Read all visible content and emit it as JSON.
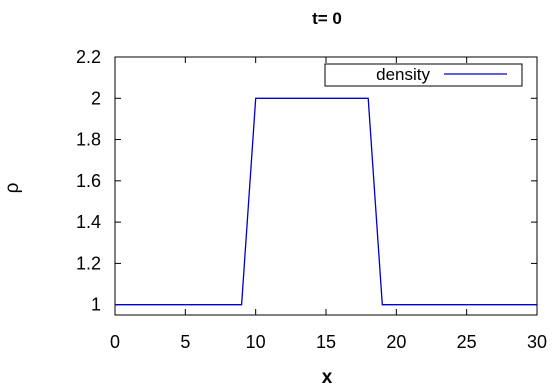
{
  "chart_data": {
    "type": "line",
    "title": "t= 0",
    "xlabel": "x",
    "ylabel": "ρ",
    "xlim": [
      0,
      30
    ],
    "ylim": [
      0.95,
      2.2
    ],
    "xticks": [
      0,
      5,
      10,
      15,
      20,
      25,
      30
    ],
    "yticks": [
      1,
      1.2,
      1.4,
      1.6,
      1.8,
      2,
      2.2
    ],
    "xtick_labels": [
      "0",
      "5",
      "10",
      "15",
      "20",
      "25",
      "30"
    ],
    "ytick_labels": [
      "1",
      "1.2",
      "1.4",
      "1.6",
      "1.8",
      "2",
      "2.2"
    ],
    "grid": false,
    "legend_position": "top-right",
    "series": [
      {
        "name": "density",
        "color": "#0000cc",
        "x": [
          0,
          9,
          10,
          18,
          19,
          30
        ],
        "y": [
          1,
          1,
          2,
          2,
          1,
          1
        ]
      }
    ]
  }
}
